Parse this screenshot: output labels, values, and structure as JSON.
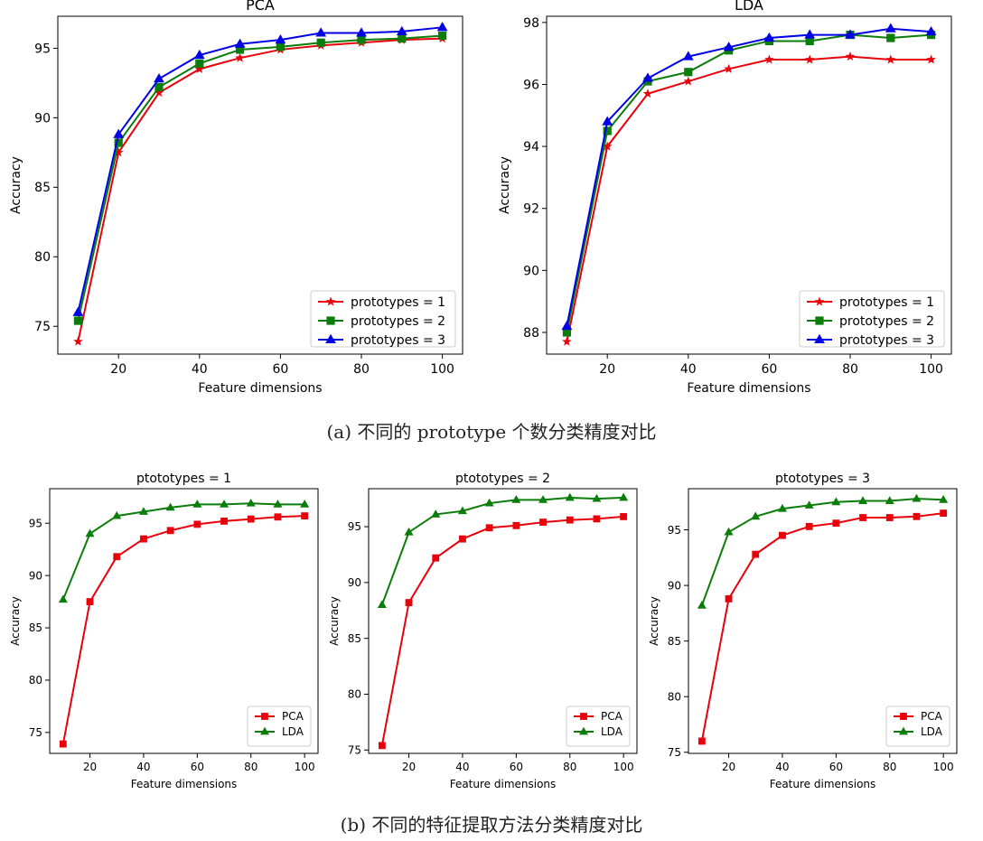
{
  "captions": {
    "a": "(a) 不同的 prototype 个数分类精度对比",
    "b": "(b) 不同的特征提取方法分类精度对比"
  },
  "colors": {
    "red": "#e8000b",
    "green": "#0a7d0a",
    "blue": "#0000e6"
  },
  "chart_data": [
    {
      "type": "line",
      "title": "PCA",
      "xlabel": "Feature dimensions",
      "ylabel": "Accuracy",
      "x": [
        10,
        20,
        30,
        40,
        50,
        60,
        70,
        80,
        90,
        100
      ],
      "xlim": [
        5,
        105
      ],
      "xticks": [
        20,
        40,
        60,
        80,
        100
      ],
      "ylim": [
        73,
        97.3
      ],
      "yticks": [
        75,
        80,
        85,
        90,
        95
      ],
      "legend": "lower-right",
      "series": [
        {
          "name": "prototypes = 1",
          "color": "red",
          "marker": "star",
          "values": [
            73.9,
            87.5,
            91.8,
            93.5,
            94.3,
            94.9,
            95.2,
            95.4,
            95.6,
            95.7
          ]
        },
        {
          "name": "prototypes = 2",
          "color": "green",
          "marker": "square",
          "values": [
            75.4,
            88.2,
            92.2,
            93.9,
            94.9,
            95.1,
            95.4,
            95.6,
            95.7,
            95.9
          ]
        },
        {
          "name": "prototypes = 3",
          "color": "blue",
          "marker": "triangle",
          "values": [
            76.0,
            88.8,
            92.8,
            94.5,
            95.3,
            95.6,
            96.1,
            96.1,
            96.2,
            96.5
          ]
        }
      ]
    },
    {
      "type": "line",
      "title": "LDA",
      "xlabel": "Feature dimensions",
      "ylabel": "Accuracy",
      "x": [
        10,
        20,
        30,
        40,
        50,
        60,
        70,
        80,
        90,
        100
      ],
      "xlim": [
        5,
        105
      ],
      "xticks": [
        20,
        40,
        60,
        80,
        100
      ],
      "ylim": [
        87.3,
        98.2
      ],
      "yticks": [
        88,
        90,
        92,
        94,
        96,
        98
      ],
      "legend": "lower-right",
      "series": [
        {
          "name": "prototypes = 1",
          "color": "red",
          "marker": "star",
          "values": [
            87.7,
            94.0,
            95.7,
            96.1,
            96.5,
            96.8,
            96.8,
            96.9,
            96.8,
            96.8
          ]
        },
        {
          "name": "prototypes = 2",
          "color": "green",
          "marker": "square",
          "values": [
            88.0,
            94.5,
            96.1,
            96.4,
            97.1,
            97.4,
            97.4,
            97.6,
            97.5,
            97.6
          ]
        },
        {
          "name": "prototypes = 3",
          "color": "blue",
          "marker": "triangle",
          "values": [
            88.2,
            94.8,
            96.2,
            96.9,
            97.2,
            97.5,
            97.6,
            97.6,
            97.8,
            97.7
          ]
        }
      ]
    },
    {
      "type": "line",
      "title": "ptototypes = 1",
      "xlabel": "Feature dimensions",
      "ylabel": "Accuracy",
      "x": [
        10,
        20,
        30,
        40,
        50,
        60,
        70,
        80,
        90,
        100
      ],
      "xlim": [
        5,
        105
      ],
      "xticks": [
        20,
        40,
        60,
        80,
        100
      ],
      "ylim": [
        73,
        98.3
      ],
      "yticks": [
        75,
        80,
        85,
        90,
        95
      ],
      "legend": "lower-right",
      "series": [
        {
          "name": "PCA",
          "color": "red",
          "marker": "square",
          "values": [
            73.9,
            87.5,
            91.8,
            93.5,
            94.3,
            94.9,
            95.2,
            95.4,
            95.6,
            95.7
          ]
        },
        {
          "name": "LDA",
          "color": "green",
          "marker": "triangle",
          "values": [
            87.7,
            94.0,
            95.7,
            96.1,
            96.5,
            96.8,
            96.8,
            96.9,
            96.8,
            96.8
          ]
        }
      ]
    },
    {
      "type": "line",
      "title": "ptototypes = 2",
      "xlabel": "Feature dimensions",
      "ylabel": "Accuracy",
      "x": [
        10,
        20,
        30,
        40,
        50,
        60,
        70,
        80,
        90,
        100
      ],
      "xlim": [
        5,
        105
      ],
      "xticks": [
        20,
        40,
        60,
        80,
        100
      ],
      "ylim": [
        74.7,
        98.4
      ],
      "yticks": [
        75,
        80,
        85,
        90,
        95
      ],
      "legend": "lower-right",
      "series": [
        {
          "name": "PCA",
          "color": "red",
          "marker": "square",
          "values": [
            75.4,
            88.2,
            92.2,
            93.9,
            94.9,
            95.1,
            95.4,
            95.6,
            95.7,
            95.9
          ]
        },
        {
          "name": "LDA",
          "color": "green",
          "marker": "triangle",
          "values": [
            88.0,
            94.5,
            96.1,
            96.4,
            97.1,
            97.4,
            97.4,
            97.6,
            97.5,
            97.6
          ]
        }
      ]
    },
    {
      "type": "line",
      "title": "ptototypes = 3",
      "xlabel": "Feature dimensions",
      "ylabel": "Accuracy",
      "x": [
        10,
        20,
        30,
        40,
        50,
        60,
        70,
        80,
        90,
        100
      ],
      "xlim": [
        5,
        105
      ],
      "xticks": [
        20,
        40,
        60,
        80,
        100
      ],
      "ylim": [
        74.9,
        98.7
      ],
      "yticks": [
        75,
        80,
        85,
        90,
        95
      ],
      "legend": "lower-right",
      "series": [
        {
          "name": "PCA",
          "color": "red",
          "marker": "square",
          "values": [
            76.0,
            88.8,
            92.8,
            94.5,
            95.3,
            95.6,
            96.1,
            96.1,
            96.2,
            96.5
          ]
        },
        {
          "name": "LDA",
          "color": "green",
          "marker": "triangle",
          "values": [
            88.2,
            94.8,
            96.2,
            96.9,
            97.2,
            97.5,
            97.6,
            97.6,
            97.8,
            97.7
          ]
        }
      ]
    }
  ]
}
